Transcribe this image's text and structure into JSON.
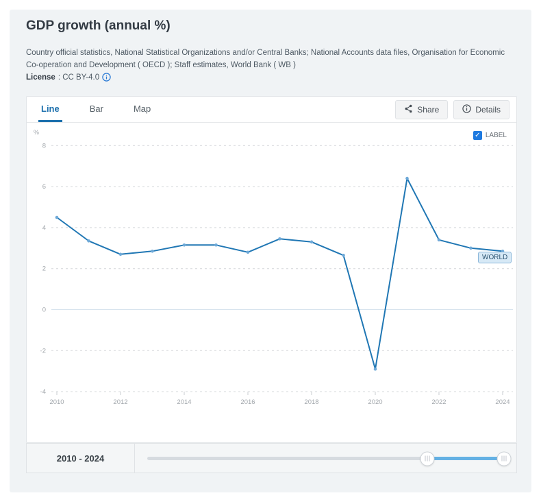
{
  "header": {
    "title": "GDP growth (annual %)",
    "source": "Country official statistics, National Statistical Organizations and/or Central Banks; National Accounts data files, Organisation for Economic Co-operation and Development ( OECD ); Staff estimates, World Bank ( WB )",
    "license_label": "License",
    "license_value": ": CC BY-4.0"
  },
  "tabs": [
    {
      "label": "Line",
      "active": true
    },
    {
      "label": "Bar",
      "active": false
    },
    {
      "label": "Map",
      "active": false
    }
  ],
  "actions": {
    "share_label": "Share",
    "details_label": "Details"
  },
  "chart_controls": {
    "label_text": "LABEL",
    "label_checked": true,
    "series_tag": "WORLD"
  },
  "chart_data": {
    "type": "line",
    "title": "GDP growth (annual %)",
    "ylabel": "%",
    "x": [
      2010,
      2011,
      2012,
      2013,
      2014,
      2015,
      2016,
      2017,
      2018,
      2019,
      2020,
      2021,
      2022,
      2023,
      2024
    ],
    "series": [
      {
        "name": "WORLD",
        "values": [
          4.5,
          3.35,
          2.7,
          2.85,
          3.15,
          3.15,
          2.8,
          3.45,
          3.3,
          2.65,
          -2.9,
          6.4,
          3.4,
          3.0,
          2.85
        ]
      }
    ],
    "ylim": [
      -4,
      8
    ],
    "yticks": [
      8,
      6,
      4,
      2,
      0,
      -2,
      -4
    ],
    "xticks": [
      2010,
      2012,
      2014,
      2016,
      2018,
      2020,
      2022,
      2024
    ],
    "grid": "horizontal-dashed, zero line solid",
    "legend_position": "label tag near last point",
    "line_color": "#2077b4",
    "marker_color": "#6ea9d8"
  },
  "slider": {
    "range_label": "2010 - 2024",
    "handles_pct": [
      77.2,
      98.3
    ],
    "track_color": "#d6dbe0",
    "active_color": "#64b1e4"
  }
}
